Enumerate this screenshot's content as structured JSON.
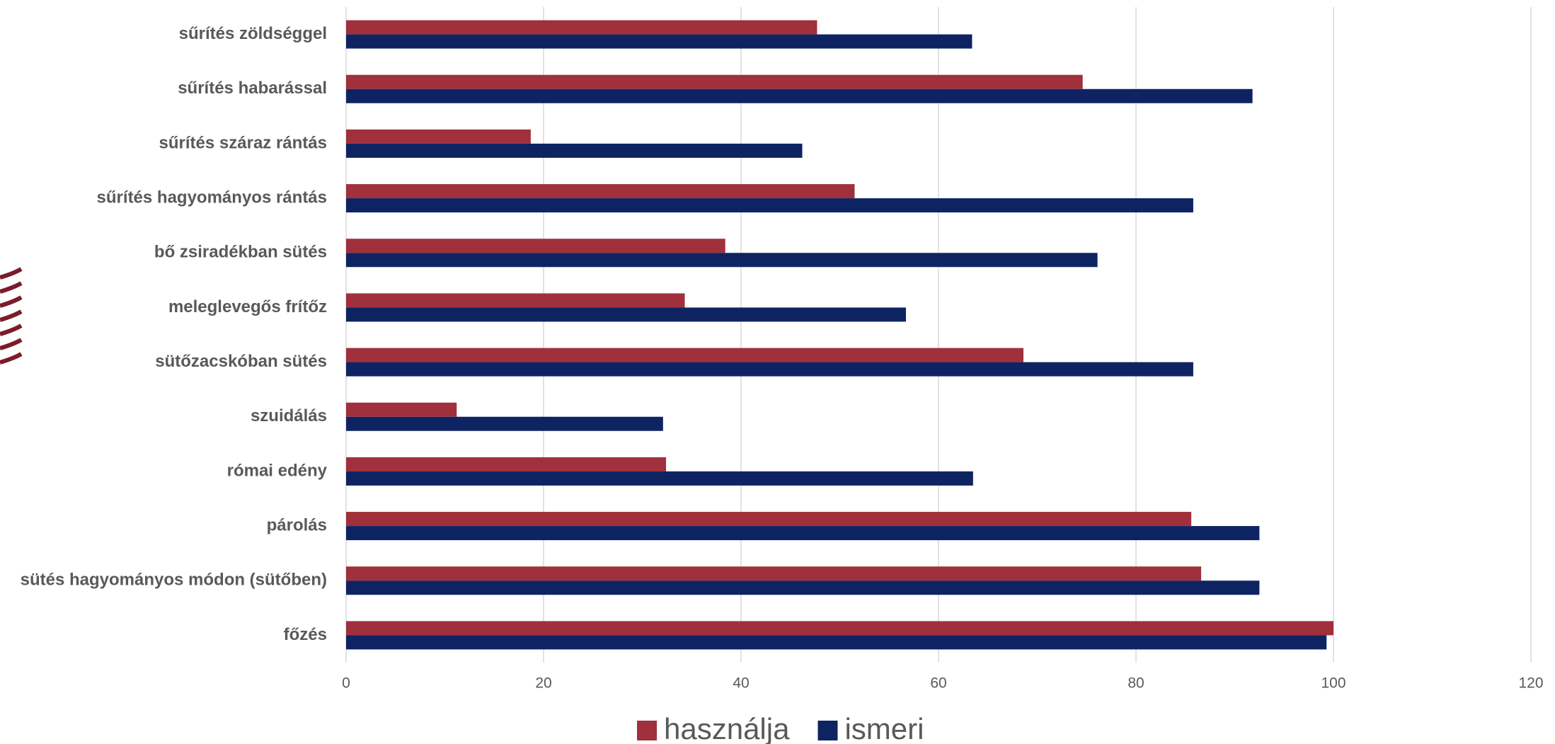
{
  "chart_data": {
    "type": "barh",
    "categories": [
      "sűrítés zöldséggel",
      "sűrítés habarással",
      "sűrítés száraz rántás",
      "sűrítés hagyományos rántás",
      "bő zsiradékban sütés",
      "meleglevegős frítőz",
      "sütőzacskóban sütés",
      "szuidálás",
      "római edény",
      "párolás",
      "sütés hagyományos módon  (sütőben)",
      "főzés"
    ],
    "series": [
      {
        "name": "használja",
        "color": "#a0303c",
        "values": [
          47.7,
          74.6,
          18.7,
          51.5,
          38.4,
          34.3,
          68.6,
          11.2,
          32.4,
          85.6,
          86.6,
          100
        ]
      },
      {
        "name": "ismeri",
        "color": "#0e2462",
        "values": [
          63.4,
          91.8,
          46.2,
          85.8,
          76.1,
          56.7,
          85.8,
          32.1,
          63.5,
          92.5,
          92.5,
          99.3
        ]
      }
    ],
    "xlim": [
      0,
      120
    ],
    "xticks": [
      0,
      20,
      40,
      60,
      80,
      100,
      120
    ],
    "grid": true,
    "legend": "bottom"
  }
}
